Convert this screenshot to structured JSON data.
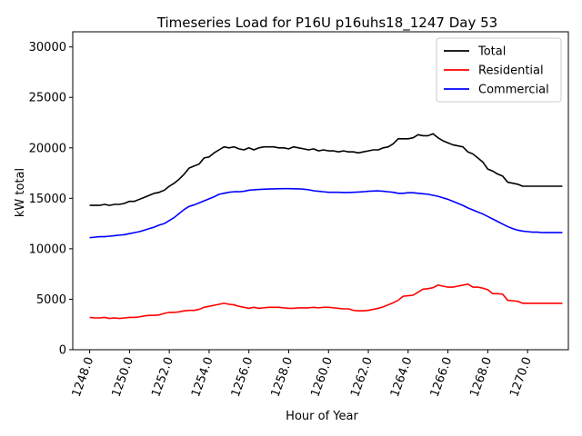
{
  "chart_data": {
    "type": "line",
    "title": "Timeseries Load for P16U p16uhs18_1247  Day 53",
    "xlabel": "Hour of Year",
    "ylabel": "kW total",
    "xlim": [
      1247.15,
      1272.05
    ],
    "ylim": [
      0,
      31500
    ],
    "xticks": [
      1248,
      1250,
      1252,
      1254,
      1256,
      1258,
      1260,
      1262,
      1264,
      1266,
      1268,
      1270
    ],
    "xtick_labels": [
      "1248.0",
      "1250.0",
      "1252.0",
      "1254.0",
      "1256.0",
      "1258.0",
      "1260.0",
      "1262.0",
      "1264.0",
      "1266.0",
      "1268.0",
      "1270.0"
    ],
    "yticks": [
      0,
      5000,
      10000,
      15000,
      20000,
      25000,
      30000
    ],
    "ytick_labels": [
      "0",
      "5000",
      "10000",
      "15000",
      "20000",
      "25000",
      "30000"
    ],
    "legend_position": "top-right",
    "x": [
      1248.0,
      1248.25,
      1248.5,
      1248.75,
      1249.0,
      1249.25,
      1249.5,
      1249.75,
      1250.0,
      1250.25,
      1250.5,
      1250.75,
      1251.0,
      1251.25,
      1251.5,
      1251.75,
      1252.0,
      1252.25,
      1252.5,
      1252.75,
      1253.0,
      1253.25,
      1253.5,
      1253.75,
      1254.0,
      1254.25,
      1254.5,
      1254.75,
      1255.0,
      1255.25,
      1255.5,
      1255.75,
      1256.0,
      1256.25,
      1256.5,
      1256.75,
      1257.0,
      1257.25,
      1257.5,
      1257.75,
      1258.0,
      1258.25,
      1258.5,
      1258.75,
      1259.0,
      1259.25,
      1259.5,
      1259.75,
      1260.0,
      1260.25,
      1260.5,
      1260.75,
      1261.0,
      1261.25,
      1261.5,
      1261.75,
      1262.0,
      1262.25,
      1262.5,
      1262.75,
      1263.0,
      1263.25,
      1263.5,
      1263.75,
      1264.0,
      1264.25,
      1264.5,
      1264.75,
      1265.0,
      1265.25,
      1265.5,
      1265.75,
      1266.0,
      1266.25,
      1266.5,
      1266.75,
      1267.0,
      1267.25,
      1267.5,
      1267.75,
      1268.0,
      1268.25,
      1268.5,
      1268.75,
      1269.0,
      1269.25,
      1269.5,
      1269.75,
      1270.0,
      1270.25,
      1270.5,
      1270.75,
      1271.0,
      1271.25,
      1271.5,
      1271.75
    ],
    "series": [
      {
        "name": "Total",
        "color": "#000000",
        "values": [
          14300,
          14300,
          14300,
          14400,
          14300,
          14400,
          14400,
          14500,
          14700,
          14700,
          14900,
          15100,
          15300,
          15500,
          15600,
          15800,
          16200,
          16500,
          16900,
          17400,
          18000,
          18200,
          18400,
          19000,
          19100,
          19500,
          19800,
          20100,
          20000,
          20100,
          19900,
          19800,
          20000,
          19800,
          20000,
          20100,
          20100,
          20100,
          20000,
          20000,
          19900,
          20100,
          20000,
          19900,
          19800,
          19900,
          19700,
          19800,
          19700,
          19700,
          19600,
          19700,
          19600,
          19600,
          19500,
          19600,
          19700,
          19800,
          19800,
          20000,
          20100,
          20400,
          20900,
          20900,
          20900,
          21000,
          21300,
          21200,
          21200,
          21400,
          21000,
          20700,
          20500,
          20300,
          20200,
          20100,
          19600,
          19400,
          19000,
          18600,
          17900,
          17700,
          17400,
          17200,
          16600,
          16500,
          16400,
          16200,
          16200,
          16200,
          16200,
          16200,
          16200,
          16200,
          16200,
          16200
        ]
      },
      {
        "name": "Residential",
        "color": "#ff0000",
        "values": [
          3200,
          3150,
          3150,
          3200,
          3100,
          3150,
          3100,
          3150,
          3200,
          3200,
          3250,
          3350,
          3400,
          3400,
          3450,
          3600,
          3700,
          3700,
          3750,
          3850,
          3900,
          3900,
          4000,
          4200,
          4300,
          4400,
          4500,
          4600,
          4500,
          4450,
          4300,
          4200,
          4100,
          4200,
          4100,
          4150,
          4200,
          4200,
          4200,
          4150,
          4100,
          4100,
          4150,
          4150,
          4150,
          4200,
          4150,
          4200,
          4200,
          4150,
          4100,
          4050,
          4050,
          3900,
          3850,
          3850,
          3900,
          4000,
          4100,
          4250,
          4450,
          4650,
          4900,
          5300,
          5350,
          5400,
          5700,
          6000,
          6050,
          6150,
          6400,
          6300,
          6200,
          6200,
          6300,
          6400,
          6500,
          6200,
          6200,
          6100,
          5950,
          5550,
          5550,
          5500,
          4900,
          4850,
          4800,
          4600,
          4600,
          4600,
          4600,
          4600,
          4600,
          4600,
          4600,
          4600
        ]
      },
      {
        "name": "Commercial",
        "color": "#0000ff",
        "values": [
          11100,
          11150,
          11200,
          11200,
          11250,
          11300,
          11350,
          11400,
          11500,
          11600,
          11700,
          11850,
          12000,
          12150,
          12350,
          12500,
          12800,
          13100,
          13500,
          13900,
          14200,
          14350,
          14550,
          14750,
          14950,
          15150,
          15400,
          15500,
          15600,
          15650,
          15650,
          15700,
          15800,
          15850,
          15880,
          15900,
          15920,
          15940,
          15950,
          15960,
          15960,
          15950,
          15940,
          15900,
          15850,
          15750,
          15700,
          15650,
          15600,
          15600,
          15600,
          15580,
          15580,
          15600,
          15620,
          15650,
          15700,
          15720,
          15740,
          15700,
          15650,
          15600,
          15500,
          15500,
          15550,
          15550,
          15500,
          15450,
          15400,
          15300,
          15200,
          15050,
          14900,
          14700,
          14500,
          14300,
          14050,
          13850,
          13650,
          13450,
          13200,
          12950,
          12700,
          12450,
          12200,
          12000,
          11850,
          11750,
          11700,
          11650,
          11650,
          11600,
          11600,
          11600,
          11600,
          11600
        ]
      }
    ]
  }
}
